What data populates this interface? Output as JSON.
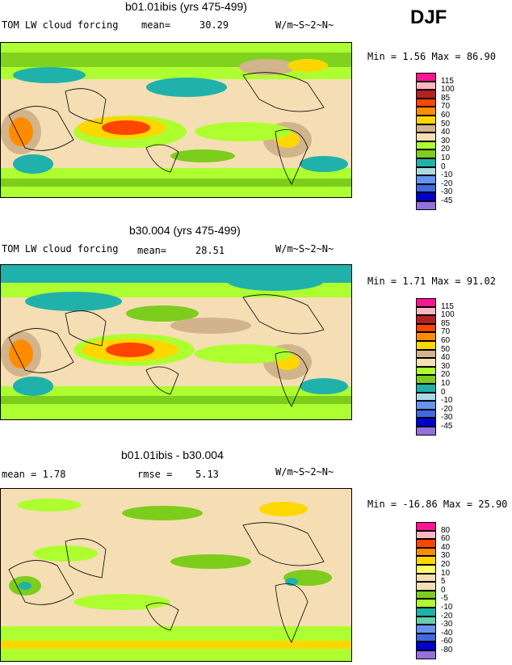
{
  "season": "DJF",
  "panels": [
    {
      "title": "b01.01ibis (yrs 475-499)",
      "left_text": "TOM LW cloud forcing",
      "mean_text": "mean=",
      "mean_value": "30.29",
      "units": "W/m~S~2~N~",
      "stats_text": "Min =    1.56 Max =   86.90",
      "colorbar": {
        "labels": [
          "115",
          "100",
          "85",
          "70",
          "60",
          "50",
          "40",
          "30",
          "20",
          "10",
          "0",
          "-10",
          "-20",
          "-30",
          "-45"
        ],
        "colors": [
          "#ff1493",
          "#ffb6c1",
          "#b22222",
          "#ff4500",
          "#ff8c00",
          "#ffd700",
          "#d2b48c",
          "#f5deb3",
          "#adff2f",
          "#7ccd1c",
          "#20b2aa",
          "#add8e6",
          "#6495ed",
          "#4169e1",
          "#0000cd",
          "#9370db"
        ]
      }
    },
    {
      "title": "b30.004 (yrs 475-499)",
      "left_text": "TOM LW cloud forcing",
      "mean_text": "mean=",
      "mean_value": "28.51",
      "units": "W/m~S~2~N~",
      "stats_text": "Min =    1.71 Max =   91.02",
      "colorbar": {
        "labels": [
          "115",
          "100",
          "85",
          "70",
          "60",
          "50",
          "40",
          "30",
          "20",
          "10",
          "0",
          "-10",
          "-20",
          "-30",
          "-45"
        ],
        "colors": [
          "#ff1493",
          "#ffb6c1",
          "#b22222",
          "#ff4500",
          "#ff8c00",
          "#ffd700",
          "#d2b48c",
          "#f5deb3",
          "#adff2f",
          "#7ccd1c",
          "#20b2aa",
          "#add8e6",
          "#6495ed",
          "#4169e1",
          "#0000cd",
          "#9370db"
        ]
      }
    },
    {
      "title": "b01.01ibis - b30.004",
      "left_text": "mean =    1.78",
      "mean_text": "rmse =",
      "mean_value": "5.13",
      "units": "W/m~S~2~N~",
      "stats_text": "Min = -16.86 Max =   25.90",
      "colorbar": {
        "labels": [
          "80",
          "60",
          "40",
          "30",
          "20",
          "10",
          "5",
          "0",
          "-5",
          "-10",
          "-20",
          "-30",
          "-40",
          "-60",
          "-80"
        ],
        "colors": [
          "#ff1493",
          "#ffb6c1",
          "#ff4500",
          "#ff8c00",
          "#ffd700",
          "#ffff66",
          "#f5deb3",
          "#f5deb3",
          "#7ccd1c",
          "#adff2f",
          "#20b2aa",
          "#66cdaa",
          "#6495ed",
          "#4169e1",
          "#0000cd",
          "#9370db"
        ]
      }
    }
  ]
}
